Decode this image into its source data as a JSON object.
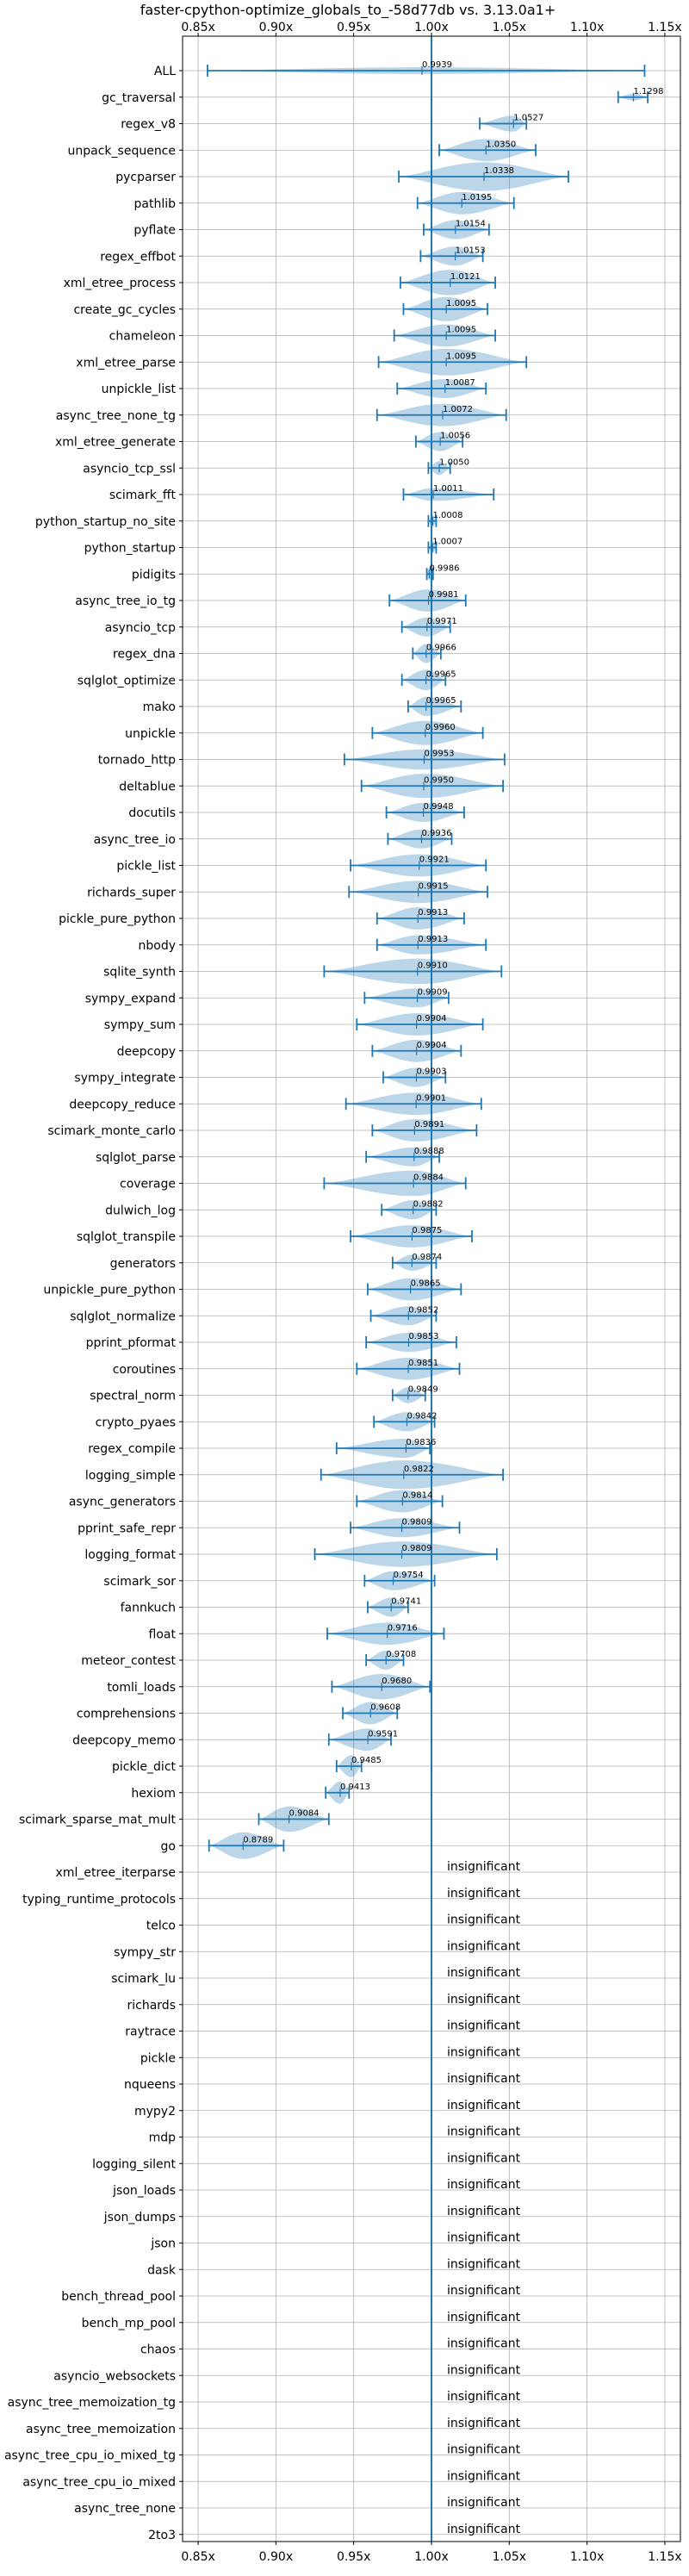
{
  "chart_data": {
    "type": "violin",
    "title": "faster-cpython-optimize_globals_to_-58d77db vs. 3.13.0a1+",
    "xlim": [
      0.84,
      1.16
    ],
    "x_ticks": [
      0.85,
      0.9,
      0.95,
      1.0,
      1.05,
      1.1,
      1.15
    ],
    "x_tick_labels": [
      "0.85x",
      "0.90x",
      "0.95x",
      "1.00x",
      "1.05x",
      "1.10x",
      "1.15x"
    ],
    "grid": true,
    "reference_line": 1.0,
    "insignificant_label": "insignificant",
    "benchmarks": [
      {
        "name": "ALL",
        "median": 0.9939,
        "min": 0.856,
        "max": 1.137,
        "width": 0.045,
        "label": "0.9939"
      },
      {
        "name": "gc_traversal",
        "median": 1.1298,
        "min": 1.12,
        "max": 1.139,
        "width": 0.05,
        "label": "1.1298"
      },
      {
        "name": "regex_v8",
        "median": 1.0527,
        "min": 1.031,
        "max": 1.061,
        "width": 0.25,
        "label": "1.0527"
      },
      {
        "name": "unpack_sequence",
        "median": 1.035,
        "min": 1.005,
        "max": 1.067,
        "width": 0.35,
        "label": "1.0350"
      },
      {
        "name": "pycparser",
        "median": 1.0338,
        "min": 0.979,
        "max": 1.088,
        "width": 0.45,
        "label": "1.0338"
      },
      {
        "name": "pathlib",
        "median": 1.0195,
        "min": 0.991,
        "max": 1.053,
        "width": 0.35,
        "label": "1.0195"
      },
      {
        "name": "pyflate",
        "median": 1.0154,
        "min": 0.995,
        "max": 1.037,
        "width": 0.3,
        "label": "1.0154"
      },
      {
        "name": "regex_effbot",
        "median": 1.0153,
        "min": 0.993,
        "max": 1.033,
        "width": 0.3,
        "label": "1.0153"
      },
      {
        "name": "xml_etree_process",
        "median": 1.0121,
        "min": 0.98,
        "max": 1.041,
        "width": 0.4,
        "label": "1.0121"
      },
      {
        "name": "create_gc_cycles",
        "median": 1.0095,
        "min": 0.982,
        "max": 1.036,
        "width": 0.38,
        "label": "1.0095"
      },
      {
        "name": "chameleon",
        "median": 1.0095,
        "min": 0.976,
        "max": 1.041,
        "width": 0.35,
        "label": "1.0095"
      },
      {
        "name": "xml_etree_parse",
        "median": 1.0095,
        "min": 0.966,
        "max": 1.061,
        "width": 0.42,
        "label": "1.0095"
      },
      {
        "name": "unpickle_list",
        "median": 1.0087,
        "min": 0.978,
        "max": 1.035,
        "width": 0.3,
        "label": "1.0087"
      },
      {
        "name": "async_tree_none_tg",
        "median": 1.0072,
        "min": 0.965,
        "max": 1.048,
        "width": 0.35,
        "label": "1.0072"
      },
      {
        "name": "xml_etree_generate",
        "median": 1.0056,
        "min": 0.99,
        "max": 1.02,
        "width": 0.3,
        "label": "1.0056"
      },
      {
        "name": "asyncio_tcp_ssl",
        "median": 1.005,
        "min": 0.998,
        "max": 1.012,
        "width": 0.22,
        "label": "1.0050"
      },
      {
        "name": "scimark_fft",
        "median": 1.0011,
        "min": 0.982,
        "max": 1.04,
        "width": 0.2,
        "label": "1.0011"
      },
      {
        "name": "python_startup_no_site",
        "median": 1.0008,
        "min": 0.998,
        "max": 1.003,
        "width": 0.2,
        "label": "1.0008"
      },
      {
        "name": "python_startup",
        "median": 1.0007,
        "min": 0.998,
        "max": 1.003,
        "width": 0.2,
        "label": "1.0007"
      },
      {
        "name": "pidigits",
        "median": 0.9986,
        "min": 0.997,
        "max": 1.001,
        "width": 0.2,
        "label": "0.9986"
      },
      {
        "name": "async_tree_io_tg",
        "median": 0.9981,
        "min": 0.973,
        "max": 1.022,
        "width": 0.35,
        "label": "0.9981"
      },
      {
        "name": "asyncio_tcp",
        "median": 0.9971,
        "min": 0.981,
        "max": 1.012,
        "width": 0.3,
        "label": "0.9971"
      },
      {
        "name": "regex_dna",
        "median": 0.9966,
        "min": 0.988,
        "max": 1.006,
        "width": 0.3,
        "label": "0.9966"
      },
      {
        "name": "sqlglot_optimize",
        "median": 0.9965,
        "min": 0.981,
        "max": 1.009,
        "width": 0.32,
        "label": "0.9965"
      },
      {
        "name": "mako",
        "median": 0.9965,
        "min": 0.985,
        "max": 1.019,
        "width": 0.3,
        "label": "0.9965"
      },
      {
        "name": "unpickle",
        "median": 0.996,
        "min": 0.962,
        "max": 1.033,
        "width": 0.38,
        "label": "0.9960"
      },
      {
        "name": "tornado_http",
        "median": 0.9953,
        "min": 0.944,
        "max": 1.047,
        "width": 0.32,
        "label": "0.9953"
      },
      {
        "name": "deltablue",
        "median": 0.995,
        "min": 0.955,
        "max": 1.046,
        "width": 0.38,
        "label": "0.9950"
      },
      {
        "name": "docutils",
        "median": 0.9948,
        "min": 0.971,
        "max": 1.021,
        "width": 0.3,
        "label": "0.9948"
      },
      {
        "name": "async_tree_io",
        "median": 0.9936,
        "min": 0.972,
        "max": 1.013,
        "width": 0.3,
        "label": "0.9936"
      },
      {
        "name": "pickle_list",
        "median": 0.9921,
        "min": 0.948,
        "max": 1.035,
        "width": 0.35,
        "label": "0.9921"
      },
      {
        "name": "richards_super",
        "median": 0.9915,
        "min": 0.947,
        "max": 1.036,
        "width": 0.35,
        "label": "0.9915"
      },
      {
        "name": "pickle_pure_python",
        "median": 0.9913,
        "min": 0.965,
        "max": 1.021,
        "width": 0.35,
        "label": "0.9913"
      },
      {
        "name": "nbody",
        "median": 0.9913,
        "min": 0.965,
        "max": 1.035,
        "width": 0.3,
        "label": "0.9913"
      },
      {
        "name": "sqlite_synth",
        "median": 0.991,
        "min": 0.931,
        "max": 1.045,
        "width": 0.4,
        "label": "0.9910"
      },
      {
        "name": "sympy_expand",
        "median": 0.9909,
        "min": 0.957,
        "max": 1.011,
        "width": 0.3,
        "label": "0.9909"
      },
      {
        "name": "sympy_sum",
        "median": 0.9904,
        "min": 0.952,
        "max": 1.033,
        "width": 0.35,
        "label": "0.9904"
      },
      {
        "name": "deepcopy",
        "median": 0.9904,
        "min": 0.962,
        "max": 1.019,
        "width": 0.35,
        "label": "0.9904"
      },
      {
        "name": "sympy_integrate",
        "median": 0.9903,
        "min": 0.969,
        "max": 1.009,
        "width": 0.3,
        "label": "0.9903"
      },
      {
        "name": "deepcopy_reduce",
        "median": 0.9901,
        "min": 0.945,
        "max": 1.032,
        "width": 0.35,
        "label": "0.9901"
      },
      {
        "name": "scimark_monte_carlo",
        "median": 0.9891,
        "min": 0.962,
        "max": 1.029,
        "width": 0.35,
        "label": "0.9891"
      },
      {
        "name": "sqlglot_parse",
        "median": 0.9888,
        "min": 0.958,
        "max": 1.005,
        "width": 0.3,
        "label": "0.9888"
      },
      {
        "name": "coverage",
        "median": 0.9884,
        "min": 0.931,
        "max": 1.022,
        "width": 0.4,
        "label": "0.9884"
      },
      {
        "name": "dulwich_log",
        "median": 0.9882,
        "min": 0.968,
        "max": 1.003,
        "width": 0.3,
        "label": "0.9882"
      },
      {
        "name": "sqlglot_transpile",
        "median": 0.9875,
        "min": 0.948,
        "max": 1.026,
        "width": 0.35,
        "label": "0.9875"
      },
      {
        "name": "generators",
        "median": 0.9874,
        "min": 0.975,
        "max": 1.003,
        "width": 0.25,
        "label": "0.9874"
      },
      {
        "name": "unpickle_pure_python",
        "median": 0.9865,
        "min": 0.959,
        "max": 1.019,
        "width": 0.35,
        "label": "0.9865"
      },
      {
        "name": "sqlglot_normalize",
        "median": 0.9852,
        "min": 0.961,
        "max": 1.003,
        "width": 0.3,
        "label": "0.9852"
      },
      {
        "name": "pprint_pformat",
        "median": 0.9853,
        "min": 0.958,
        "max": 1.016,
        "width": 0.3,
        "label": "0.9853"
      },
      {
        "name": "coroutines",
        "median": 0.9851,
        "min": 0.952,
        "max": 1.018,
        "width": 0.35,
        "label": "0.9851"
      },
      {
        "name": "spectral_norm",
        "median": 0.9849,
        "min": 0.975,
        "max": 0.996,
        "width": 0.25,
        "label": "0.9849"
      },
      {
        "name": "crypto_pyaes",
        "median": 0.9842,
        "min": 0.963,
        "max": 1.002,
        "width": 0.3,
        "label": "0.9842"
      },
      {
        "name": "regex_compile",
        "median": 0.9836,
        "min": 0.939,
        "max": 0.999,
        "width": 0.3,
        "label": "0.9836"
      },
      {
        "name": "logging_simple",
        "median": 0.9822,
        "min": 0.929,
        "max": 1.046,
        "width": 0.45,
        "label": "0.9822"
      },
      {
        "name": "async_generators",
        "median": 0.9814,
        "min": 0.952,
        "max": 1.007,
        "width": 0.35,
        "label": "0.9814"
      },
      {
        "name": "pprint_safe_repr",
        "median": 0.9809,
        "min": 0.948,
        "max": 1.018,
        "width": 0.3,
        "label": "0.9809"
      },
      {
        "name": "logging_format",
        "median": 0.9809,
        "min": 0.925,
        "max": 1.042,
        "width": 0.4,
        "label": "0.9809"
      },
      {
        "name": "scimark_sor",
        "median": 0.9754,
        "min": 0.957,
        "max": 1.002,
        "width": 0.3,
        "label": "0.9754"
      },
      {
        "name": "fannkuch",
        "median": 0.9741,
        "min": 0.959,
        "max": 0.985,
        "width": 0.3,
        "label": "0.9741"
      },
      {
        "name": "float",
        "median": 0.9716,
        "min": 0.933,
        "max": 1.008,
        "width": 0.35,
        "label": "0.9716"
      },
      {
        "name": "meteor_contest",
        "median": 0.9708,
        "min": 0.958,
        "max": 0.982,
        "width": 0.3,
        "label": "0.9708"
      },
      {
        "name": "tomli_loads",
        "median": 0.968,
        "min": 0.936,
        "max": 0.999,
        "width": 0.4,
        "label": "0.9680"
      },
      {
        "name": "comprehensions",
        "median": 0.9608,
        "min": 0.943,
        "max": 0.978,
        "width": 0.35,
        "label": "0.9608"
      },
      {
        "name": "deepcopy_memo",
        "median": 0.9591,
        "min": 0.934,
        "max": 0.974,
        "width": 0.35,
        "label": "0.9591"
      },
      {
        "name": "pickle_dict",
        "median": 0.9485,
        "min": 0.939,
        "max": 0.955,
        "width": 0.35,
        "label": "0.9485"
      },
      {
        "name": "hexiom",
        "median": 0.9413,
        "min": 0.932,
        "max": 0.947,
        "width": 0.35,
        "label": "0.9413"
      },
      {
        "name": "scimark_sparse_mat_mult",
        "median": 0.9084,
        "min": 0.889,
        "max": 0.934,
        "width": 0.4,
        "label": "0.9084"
      },
      {
        "name": "go",
        "median": 0.8789,
        "min": 0.857,
        "max": 0.905,
        "width": 0.42,
        "label": "0.8789"
      },
      {
        "name": "xml_etree_iterparse",
        "insignificant": true
      },
      {
        "name": "typing_runtime_protocols",
        "insignificant": true
      },
      {
        "name": "telco",
        "insignificant": true
      },
      {
        "name": "sympy_str",
        "insignificant": true
      },
      {
        "name": "scimark_lu",
        "insignificant": true
      },
      {
        "name": "richards",
        "insignificant": true
      },
      {
        "name": "raytrace",
        "insignificant": true
      },
      {
        "name": "pickle",
        "insignificant": true
      },
      {
        "name": "nqueens",
        "insignificant": true
      },
      {
        "name": "mypy2",
        "insignificant": true
      },
      {
        "name": "mdp",
        "insignificant": true
      },
      {
        "name": "logging_silent",
        "insignificant": true
      },
      {
        "name": "json_loads",
        "insignificant": true
      },
      {
        "name": "json_dumps",
        "insignificant": true
      },
      {
        "name": "json",
        "insignificant": true
      },
      {
        "name": "dask",
        "insignificant": true
      },
      {
        "name": "bench_thread_pool",
        "insignificant": true
      },
      {
        "name": "bench_mp_pool",
        "insignificant": true
      },
      {
        "name": "chaos",
        "insignificant": true
      },
      {
        "name": "asyncio_websockets",
        "insignificant": true
      },
      {
        "name": "async_tree_memoization_tg",
        "insignificant": true
      },
      {
        "name": "async_tree_memoization",
        "insignificant": true
      },
      {
        "name": "async_tree_cpu_io_mixed_tg",
        "insignificant": true
      },
      {
        "name": "async_tree_cpu_io_mixed",
        "insignificant": true
      },
      {
        "name": "async_tree_none",
        "insignificant": true
      },
      {
        "name": "2to3",
        "insignificant": true
      }
    ]
  },
  "colors": {
    "line": "#1f77b4",
    "violin_fill": "#1f77b4",
    "grid": "#b0b0b0",
    "axis": "#000000"
  }
}
